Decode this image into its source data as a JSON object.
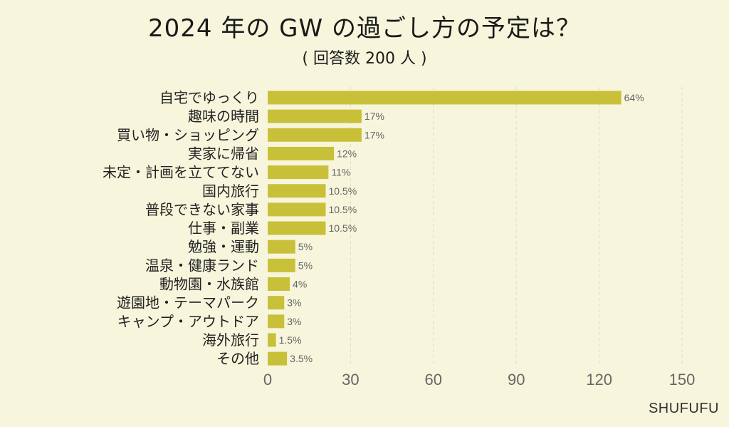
{
  "title": "2024 年の GW の過ごし方の予定は？",
  "subtitle": "( 回答数 200 人 )",
  "watermark": "SHUFUFU",
  "colors": {
    "background": "#f7f6dc",
    "bar": "#c9c03a",
    "grid": "#dcdcc4",
    "tick_text": "#666666"
  },
  "chart_data": {
    "type": "bar",
    "orientation": "horizontal",
    "categories": [
      "自宅でゆっくり",
      "趣味の時間",
      "買い物・ショッピング",
      "実家に帰省",
      "未定・計画を立ててない",
      "国内旅行",
      "普段できない家事",
      "仕事・副業",
      "勉強・運動",
      "温泉・健康ランド",
      "動物園・水族館",
      "遊園地・テーマパーク",
      "キャンプ・アウトドア",
      "海外旅行",
      "その他"
    ],
    "values": [
      128,
      34,
      34,
      24,
      22,
      21,
      21,
      21,
      10,
      10,
      8,
      6,
      6,
      3,
      7
    ],
    "data_labels": [
      "64%",
      "17%",
      "17%",
      "12%",
      "11%",
      "10.5%",
      "10.5%",
      "10.5%",
      "5%",
      "5%",
      "4%",
      "3%",
      "3%",
      "1.5%",
      "3.5%"
    ],
    "xlim": [
      0,
      150
    ],
    "xticks": [
      "0",
      "30",
      "60",
      "90",
      "120",
      "150"
    ],
    "xtick_values": [
      0,
      30,
      60,
      90,
      120,
      150
    ],
    "grid": true
  }
}
